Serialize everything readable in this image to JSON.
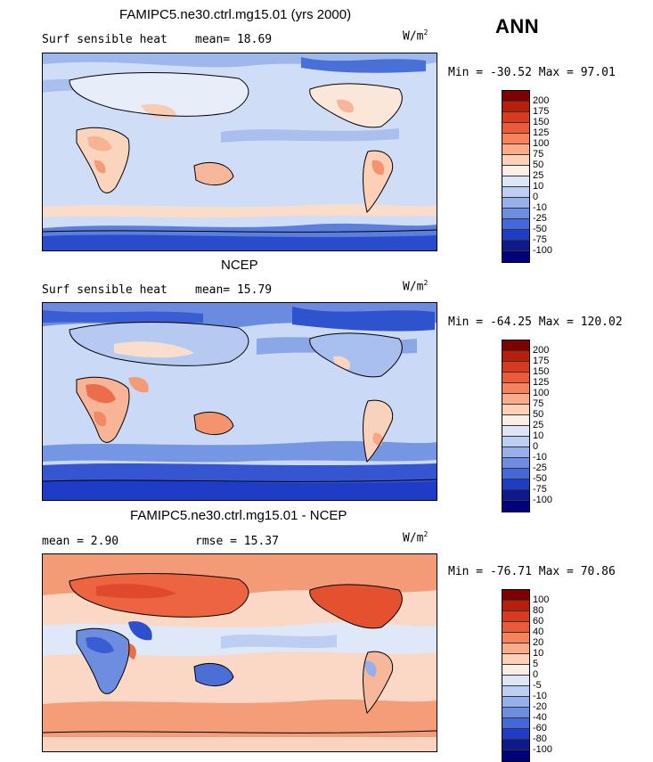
{
  "season": "ANN",
  "units": "W/m",
  "units_sup": "2",
  "panels": [
    {
      "title": "FAMIPC5.ne30.ctrl.mg15.01 (yrs 2000)",
      "left": "Surf sensible heat",
      "stat": "mean=   18.69",
      "minmax": "Min = -30.52 Max =  97.01",
      "labels": [
        "200",
        "175",
        "150",
        "125",
        "100",
        "75",
        "50",
        "25",
        "10",
        "0",
        "-10",
        "-25",
        "-50",
        "-75",
        "-100"
      ]
    },
    {
      "title": "NCEP",
      "left": "Surf sensible heat",
      "stat": "mean=   15.79",
      "minmax": "Min = -64.25 Max = 120.02",
      "labels": [
        "200",
        "175",
        "150",
        "125",
        "100",
        "75",
        "50",
        "25",
        "10",
        "0",
        "-10",
        "-25",
        "-50",
        "-75",
        "-100"
      ]
    },
    {
      "title": "FAMIPC5.ne30.ctrl.mg15.01 - NCEP",
      "left": "mean =    2.90",
      "stat": "rmse =   15.37",
      "minmax": "Min = -76.71 Max =  70.86",
      "labels": [
        "100",
        "80",
        "60",
        "40",
        "20",
        "10",
        "5",
        "0",
        "-5",
        "-10",
        "-20",
        "-40",
        "-60",
        "-80",
        "-100"
      ]
    }
  ],
  "colors": [
    "#7f0000",
    "#b51f0c",
    "#d8391f",
    "#ec5a38",
    "#f6835c",
    "#fcab8a",
    "#fdd0b8",
    "#fbeee6",
    "#dde6f7",
    "#bccff2",
    "#95b0ea",
    "#6d8ee0",
    "#4468d8",
    "#1f3dc4",
    "#0c1a8a",
    "#00007a"
  ]
}
